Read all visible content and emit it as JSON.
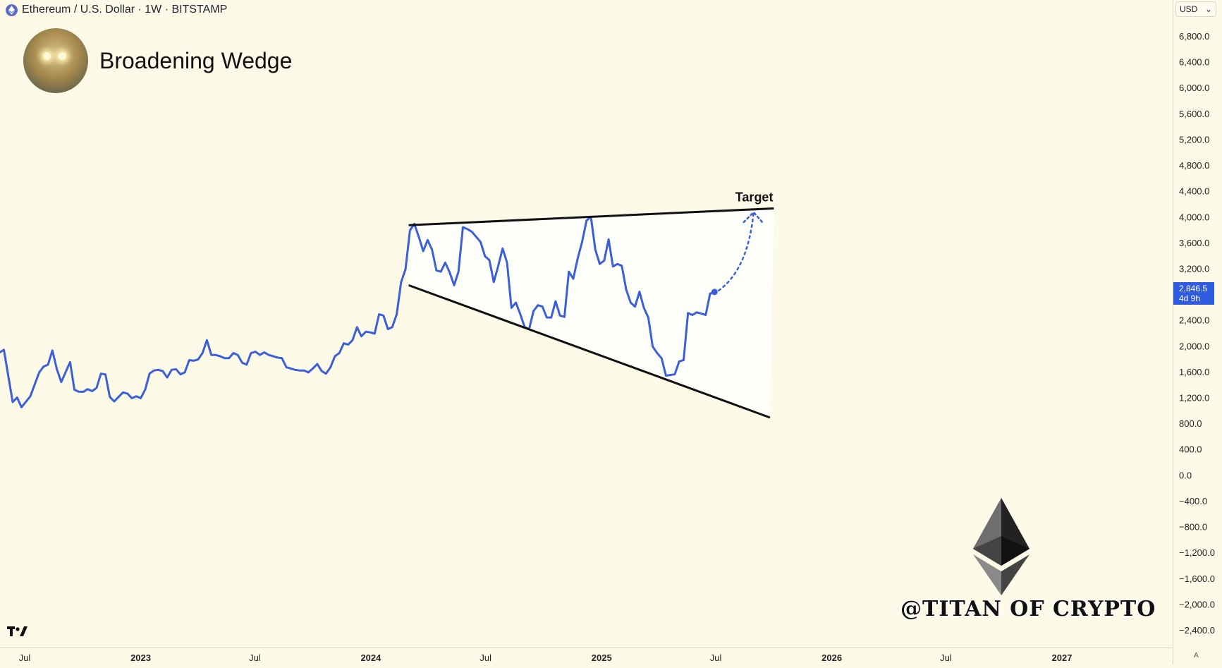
{
  "header": {
    "symbol_line": "Ethereum / U.S. Dollar · 1W · BITSTAMP",
    "title": "Broadening Wedge",
    "currency_label": "USD"
  },
  "watermark": "@TITAN OF CRYPTO",
  "price_tag": {
    "price": "2,846.5",
    "countdown": "4d 9h"
  },
  "auto_label": "A",
  "colors": {
    "background": "#fefae8",
    "price_line": "#3b5fd9",
    "trendline": "#111111",
    "price_tag": "#2f5be0"
  },
  "chart_data": {
    "type": "line",
    "title": "Broadening Wedge",
    "xlabel": "",
    "ylabel": "",
    "y_ticks": [
      "6,800.0",
      "6,400.0",
      "6,000.0",
      "5,600.0",
      "5,200.0",
      "4,800.0",
      "4,400.0",
      "4,000.0",
      "3,600.0",
      "3,200.0",
      "2,400.0",
      "2,000.0",
      "1,600.0",
      "1,200.0",
      "800.0",
      "400.0",
      "0.0",
      "−400.0",
      "−800.0",
      "−1,200.0",
      "−1,600.0",
      "−2,000.0",
      "−2,400.0"
    ],
    "y_tick_values": [
      6800,
      6400,
      6000,
      5600,
      5200,
      4800,
      4400,
      4000,
      3600,
      3200,
      2400,
      2000,
      1600,
      1200,
      800,
      400,
      0,
      -400,
      -800,
      -1200,
      -1600,
      -2000,
      -2400
    ],
    "x_ticks": [
      {
        "label": "Jul",
        "date": "2022-07-01",
        "bold": false
      },
      {
        "label": "2023",
        "date": "2023-01-01",
        "bold": true
      },
      {
        "label": "Jul",
        "date": "2023-07-01",
        "bold": false
      },
      {
        "label": "2024",
        "date": "2024-01-01",
        "bold": true
      },
      {
        "label": "Jul",
        "date": "2024-07-01",
        "bold": false
      },
      {
        "label": "2025",
        "date": "2025-01-01",
        "bold": true
      },
      {
        "label": "Jul",
        "date": "2025-07-01",
        "bold": false
      },
      {
        "label": "2026",
        "date": "2026-01-01",
        "bold": true
      },
      {
        "label": "Jul",
        "date": "2026-07-01",
        "bold": false
      },
      {
        "label": "2027",
        "date": "2027-01-01",
        "bold": true
      }
    ],
    "series": [
      {
        "points": [
          [
            "2022-05-08",
            1820
          ],
          [
            "2022-05-29",
            1950
          ],
          [
            "2022-06-12",
            1140
          ],
          [
            "2022-06-19",
            1210
          ],
          [
            "2022-06-26",
            1060
          ],
          [
            "2022-07-10",
            1230
          ],
          [
            "2022-07-24",
            1600
          ],
          [
            "2022-07-31",
            1690
          ],
          [
            "2022-08-07",
            1720
          ],
          [
            "2022-08-14",
            1940
          ],
          [
            "2022-08-21",
            1650
          ],
          [
            "2022-08-28",
            1450
          ],
          [
            "2022-09-11",
            1760
          ],
          [
            "2022-09-18",
            1330
          ],
          [
            "2022-09-25",
            1300
          ],
          [
            "2022-10-02",
            1300
          ],
          [
            "2022-10-09",
            1340
          ],
          [
            "2022-10-16",
            1310
          ],
          [
            "2022-10-23",
            1360
          ],
          [
            "2022-10-30",
            1580
          ],
          [
            "2022-11-06",
            1570
          ],
          [
            "2022-11-13",
            1220
          ],
          [
            "2022-11-20",
            1150
          ],
          [
            "2022-11-27",
            1220
          ],
          [
            "2022-12-04",
            1290
          ],
          [
            "2022-12-11",
            1270
          ],
          [
            "2022-12-18",
            1200
          ],
          [
            "2022-12-25",
            1230
          ],
          [
            "2023-01-01",
            1200
          ],
          [
            "2023-01-08",
            1330
          ],
          [
            "2023-01-15",
            1580
          ],
          [
            "2023-01-22",
            1630
          ],
          [
            "2023-01-29",
            1640
          ],
          [
            "2023-02-05",
            1620
          ],
          [
            "2023-02-12",
            1520
          ],
          [
            "2023-02-19",
            1640
          ],
          [
            "2023-02-26",
            1650
          ],
          [
            "2023-03-05",
            1570
          ],
          [
            "2023-03-12",
            1600
          ],
          [
            "2023-03-19",
            1790
          ],
          [
            "2023-03-26",
            1780
          ],
          [
            "2023-04-02",
            1800
          ],
          [
            "2023-04-09",
            1900
          ],
          [
            "2023-04-16",
            2100
          ],
          [
            "2023-04-23",
            1870
          ],
          [
            "2023-04-30",
            1870
          ],
          [
            "2023-05-07",
            1850
          ],
          [
            "2023-05-14",
            1820
          ],
          [
            "2023-05-21",
            1820
          ],
          [
            "2023-05-28",
            1900
          ],
          [
            "2023-06-04",
            1870
          ],
          [
            "2023-06-11",
            1750
          ],
          [
            "2023-06-18",
            1720
          ],
          [
            "2023-06-25",
            1900
          ],
          [
            "2023-07-02",
            1920
          ],
          [
            "2023-07-09",
            1870
          ],
          [
            "2023-07-16",
            1910
          ],
          [
            "2023-07-23",
            1870
          ],
          [
            "2023-07-30",
            1850
          ],
          [
            "2023-08-06",
            1830
          ],
          [
            "2023-08-13",
            1820
          ],
          [
            "2023-08-20",
            1680
          ],
          [
            "2023-08-27",
            1660
          ],
          [
            "2023-09-03",
            1640
          ],
          [
            "2023-09-10",
            1630
          ],
          [
            "2023-09-17",
            1630
          ],
          [
            "2023-09-24",
            1600
          ],
          [
            "2023-10-01",
            1660
          ],
          [
            "2023-10-08",
            1730
          ],
          [
            "2023-10-15",
            1620
          ],
          [
            "2023-10-22",
            1580
          ],
          [
            "2023-10-29",
            1680
          ],
          [
            "2023-11-05",
            1850
          ],
          [
            "2023-11-12",
            1900
          ],
          [
            "2023-11-19",
            2050
          ],
          [
            "2023-11-26",
            2030
          ],
          [
            "2023-12-03",
            2100
          ],
          [
            "2023-12-10",
            2300
          ],
          [
            "2023-12-17",
            2160
          ],
          [
            "2023-12-24",
            2230
          ],
          [
            "2023-12-31",
            2220
          ],
          [
            "2024-01-07",
            2200
          ],
          [
            "2024-01-14",
            2500
          ],
          [
            "2024-01-21",
            2480
          ],
          [
            "2024-01-28",
            2270
          ],
          [
            "2024-02-04",
            2300
          ],
          [
            "2024-02-11",
            2500
          ],
          [
            "2024-02-18",
            3000
          ],
          [
            "2024-02-25",
            3200
          ],
          [
            "2024-03-03",
            3800
          ],
          [
            "2024-03-10",
            3900
          ],
          [
            "2024-03-17",
            3700
          ],
          [
            "2024-03-24",
            3480
          ],
          [
            "2024-03-31",
            3650
          ],
          [
            "2024-04-07",
            3500
          ],
          [
            "2024-04-14",
            3180
          ],
          [
            "2024-04-21",
            3160
          ],
          [
            "2024-04-28",
            3300
          ],
          [
            "2024-05-05",
            3150
          ],
          [
            "2024-05-12",
            2950
          ],
          [
            "2024-05-19",
            3160
          ],
          [
            "2024-05-26",
            3850
          ],
          [
            "2024-06-02",
            3820
          ],
          [
            "2024-06-09",
            3780
          ],
          [
            "2024-06-16",
            3700
          ],
          [
            "2024-06-23",
            3620
          ],
          [
            "2024-06-30",
            3400
          ],
          [
            "2024-07-07",
            3340
          ],
          [
            "2024-07-14",
            3000
          ],
          [
            "2024-07-21",
            3250
          ],
          [
            "2024-07-28",
            3520
          ],
          [
            "2024-08-04",
            3300
          ],
          [
            "2024-08-11",
            2600
          ],
          [
            "2024-08-18",
            2680
          ],
          [
            "2024-08-25",
            2500
          ],
          [
            "2024-09-01",
            2300
          ],
          [
            "2024-09-08",
            2270
          ],
          [
            "2024-09-15",
            2550
          ],
          [
            "2024-09-22",
            2640
          ],
          [
            "2024-09-29",
            2620
          ],
          [
            "2024-10-06",
            2450
          ],
          [
            "2024-10-13",
            2450
          ],
          [
            "2024-10-20",
            2700
          ],
          [
            "2024-10-27",
            2480
          ],
          [
            "2024-11-03",
            2460
          ],
          [
            "2024-11-10",
            3160
          ],
          [
            "2024-11-17",
            3050
          ],
          [
            "2024-11-24",
            3360
          ],
          [
            "2024-12-01",
            3620
          ],
          [
            "2024-12-08",
            3950
          ],
          [
            "2024-12-15",
            4010
          ],
          [
            "2024-12-22",
            3500
          ],
          [
            "2024-12-29",
            3280
          ],
          [
            "2025-01-05",
            3330
          ],
          [
            "2025-01-12",
            3660
          ],
          [
            "2025-01-19",
            3240
          ],
          [
            "2025-01-26",
            3280
          ],
          [
            "2025-02-02",
            3250
          ],
          [
            "2025-02-09",
            2880
          ],
          [
            "2025-02-16",
            2680
          ],
          [
            "2025-02-23",
            2620
          ],
          [
            "2025-03-02",
            2850
          ],
          [
            "2025-03-09",
            2600
          ],
          [
            "2025-03-16",
            2450
          ],
          [
            "2025-03-23",
            2000
          ],
          [
            "2025-03-30",
            1900
          ],
          [
            "2025-04-06",
            1820
          ],
          [
            "2025-04-13",
            1550
          ],
          [
            "2025-04-20",
            1560
          ],
          [
            "2025-04-27",
            1570
          ],
          [
            "2025-05-04",
            1770
          ],
          [
            "2025-05-11",
            1790
          ],
          [
            "2025-05-18",
            2520
          ],
          [
            "2025-05-25",
            2490
          ],
          [
            "2025-06-01",
            2530
          ],
          [
            "2025-06-08",
            2510
          ],
          [
            "2025-06-15",
            2490
          ],
          [
            "2025-06-22",
            2820
          ],
          [
            "2025-06-29",
            2846.5
          ]
        ]
      }
    ],
    "trendlines": [
      {
        "kind": "upper",
        "from": [
          "2024-03-01",
          3880
        ],
        "to": [
          "2025-10-01",
          4140
        ]
      },
      {
        "kind": "lower",
        "from": [
          "2024-03-01",
          2950
        ],
        "to": [
          "2025-09-25",
          900
        ]
      }
    ],
    "projection": {
      "from": [
        "2025-06-29",
        2846.5
      ],
      "to": [
        "2025-08-30",
        4080
      ]
    },
    "annotations": [
      {
        "text": "Target",
        "at": [
          "2025-08-31",
          4250
        ]
      }
    ],
    "last_price": 2846.5
  }
}
